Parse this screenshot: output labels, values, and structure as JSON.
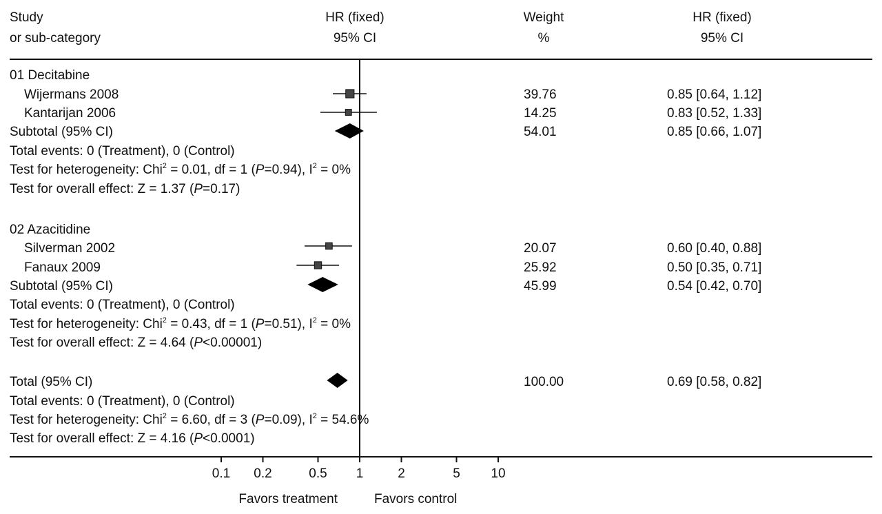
{
  "chart_data": {
    "type": "forest",
    "scale": "log",
    "x_ticks": [
      0.1,
      0.2,
      0.5,
      1,
      2,
      5,
      10
    ],
    "x_tick_labels": [
      "0.1",
      "0.2",
      "0.5",
      "1",
      "2",
      "5",
      "10"
    ],
    "null_value": 1,
    "favors_left": "Favors treatment",
    "favors_right": "Favors control",
    "headers": {
      "study_line1": "Study",
      "study_line2": "or sub-category",
      "plot_line1": "HR (fixed)",
      "plot_line2": "95% CI",
      "weight_line1": "Weight",
      "weight_line2": "%",
      "ci_line1": "HR (fixed)",
      "ci_line2": "95% CI"
    },
    "subgroups": [
      {
        "title": "01 Decitabine",
        "studies": [
          {
            "name": "Wijermans 2008",
            "hr": 0.85,
            "lower": 0.64,
            "upper": 1.12,
            "weight": "39.76",
            "ci_text": "0.85 [0.64, 1.12]"
          },
          {
            "name": "Kantarijan 2006",
            "hr": 0.83,
            "lower": 0.52,
            "upper": 1.33,
            "weight": "14.25",
            "ci_text": "0.83 [0.52, 1.33]"
          }
        ],
        "subtotal": {
          "label": "Subtotal (95% CI)",
          "hr": 0.85,
          "lower": 0.66,
          "upper": 1.07,
          "weight": "54.01",
          "ci_text": "0.85 [0.66, 1.07]"
        },
        "events": "Total events: 0 (Treatment), 0 (Control)",
        "heterogeneity": {
          "prefix": "Test for heterogeneity: Chi",
          "sup": "2",
          "mid1": " = 0.01, df = 1 (",
          "p": "P",
          "mid2": "=0.94), I",
          "i2sup": "2",
          "end": " = 0%"
        },
        "overall": {
          "prefix": "Test for overall effect: Z = 1.37 (",
          "p": "P",
          "end": "=0.17)"
        }
      },
      {
        "title": "02 Azacitidine",
        "studies": [
          {
            "name": "Silverman 2002",
            "hr": 0.6,
            "lower": 0.4,
            "upper": 0.88,
            "weight": "20.07",
            "ci_text": "0.60 [0.40, 0.88]"
          },
          {
            "name": "Fanaux 2009",
            "hr": 0.5,
            "lower": 0.35,
            "upper": 0.71,
            "weight": "25.92",
            "ci_text": "0.50 [0.35, 0.71]"
          }
        ],
        "subtotal": {
          "label": "Subtotal (95% CI)",
          "hr": 0.54,
          "lower": 0.42,
          "upper": 0.7,
          "weight": "45.99",
          "ci_text": "0.54 [0.42, 0.70]"
        },
        "events": "Total events: 0 (Treatment), 0 (Control)",
        "heterogeneity": {
          "prefix": "Test for heterogeneity: Chi",
          "sup": "2",
          "mid1": " = 0.43, df = 1 (",
          "p": "P",
          "mid2": "=0.51), I",
          "i2sup": "2",
          "end": " = 0%"
        },
        "overall": {
          "prefix": "Test for overall effect: Z = 4.64 (",
          "p": "P",
          "end": "<0.00001)"
        }
      }
    ],
    "total": {
      "label": "Total (95% CI)",
      "hr": 0.69,
      "lower": 0.58,
      "upper": 0.82,
      "weight": "100.00",
      "ci_text": "0.69 [0.58, 0.82]",
      "events": "Total events: 0 (Treatment), 0 (Control)",
      "heterogeneity": {
        "prefix": "Test for heterogeneity: Chi",
        "sup": "2",
        "mid1": " = 6.60, df = 3 (",
        "p": "P",
        "mid2": "=0.09), I",
        "i2sup": "2",
        "end": " = 54.6%"
      },
      "overall": {
        "prefix": "Test for overall effect: Z = 4.16 (",
        "p": "P",
        "end": "<0.0001)"
      }
    }
  }
}
